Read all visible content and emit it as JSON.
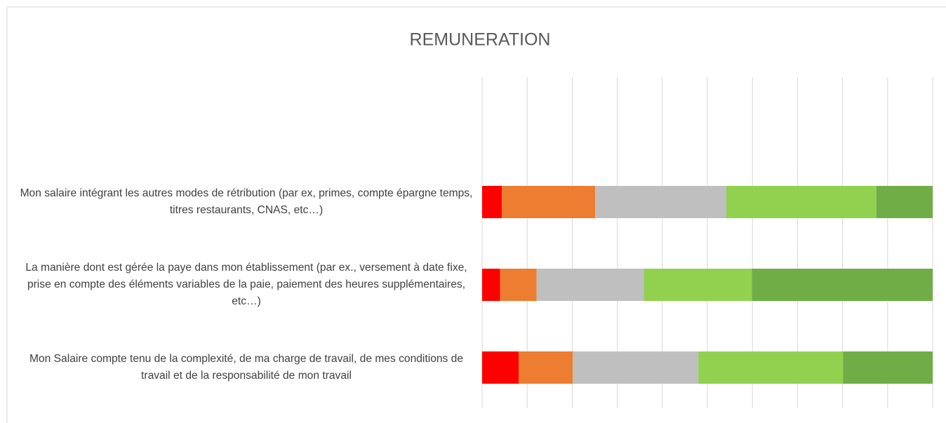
{
  "chart_data": {
    "type": "stacked_barh",
    "title": "REMUNERATION",
    "categories": [
      "Mon salaire intégrant les autres modes de rétribution (par ex, primes, compte épargne temps, titres restaurants, CNAS, etc…)",
      "La manière dont est gérée la paye dans mon établissement (par ex., versement à date fixe, prise en compte des éléments variables de la paie, paiement des heures supplémentaires, etc…)",
      "Mon Salaire compte tenu de la complexité, de ma charge de travail,  de mes conditions de travail et de la responsabilité de mon travail"
    ],
    "series": [
      {
        "color": "#ff0000",
        "values": [
          4.4,
          4.0,
          8.1
        ]
      },
      {
        "color": "#ed7d31",
        "values": [
          20.7,
          8.1,
          12.0
        ]
      },
      {
        "color": "#bfbfbf",
        "values": [
          29.1,
          23.8,
          27.9
        ]
      },
      {
        "color": "#92d050",
        "values": [
          33.3,
          24.0,
          32.1
        ]
      },
      {
        "color": "#70ad47",
        "values": [
          12.5,
          40.1,
          19.9
        ]
      }
    ],
    "xlim": [
      0,
      100
    ],
    "xticks": [
      0,
      10,
      20,
      30,
      40,
      50,
      60,
      70,
      80,
      90,
      100
    ],
    "grid": true
  }
}
